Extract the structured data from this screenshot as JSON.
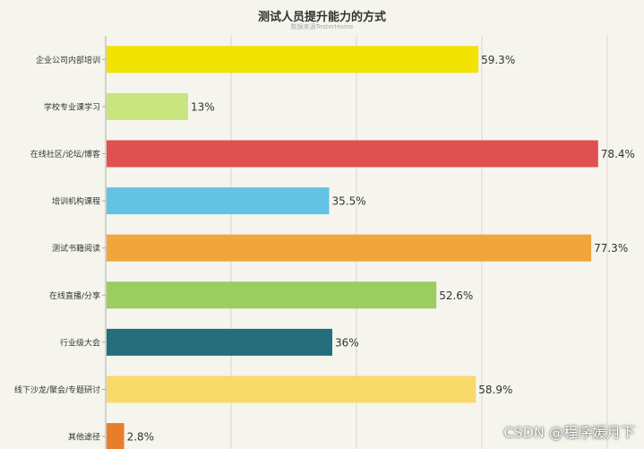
{
  "chart_data": {
    "type": "bar",
    "orientation": "horizontal",
    "title": "测试人员提升能力的方式",
    "subtitle": "数据来源TesterHome",
    "categories": [
      "企业公司内部培训",
      "学校专业课学习",
      "在线社区/论坛/博客",
      "培训机构课程",
      "测试书籍阅读",
      "在线直播/分享",
      "行业级大会",
      "线下沙龙/聚会/专题研讨",
      "其他途径"
    ],
    "values": [
      59.3,
      13,
      78.4,
      35.5,
      77.3,
      52.6,
      36,
      58.9,
      2.8
    ],
    "value_labels": [
      "59.3%",
      "13%",
      "78.4%",
      "35.5%",
      "77.3%",
      "52.6%",
      "36%",
      "58.9%",
      "2.8%"
    ],
    "colors": [
      "#f1e200",
      "#c9e57f",
      "#e05050",
      "#63c3e2",
      "#f1a53c",
      "#9bcd61",
      "#246f7b",
      "#fad96b",
      "#e87e2c"
    ],
    "xlim": [
      0,
      85
    ],
    "grid": true
  },
  "watermark": "CSDN @程序媛月下"
}
